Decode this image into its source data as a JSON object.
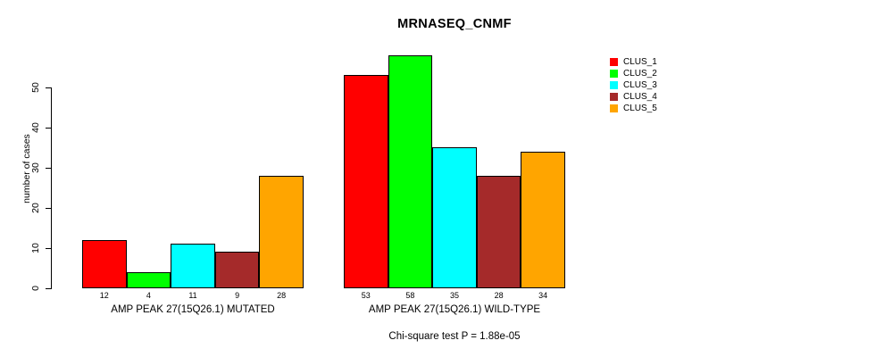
{
  "chart_data": {
    "type": "bar",
    "title": "MRNASEQ_CNMF",
    "ylabel": "number of cases",
    "xlabel": "",
    "annotation": "Chi-square test P = 1.88e-05",
    "categories": [
      "AMP PEAK 27(15Q26.1) MUTATED",
      "AMP PEAK 27(15Q26.1) WILD-TYPE"
    ],
    "series": [
      {
        "name": "CLUS_1",
        "color": "#FF0000",
        "values": [
          12,
          53
        ]
      },
      {
        "name": "CLUS_2",
        "color": "#00FF00",
        "values": [
          4,
          58
        ]
      },
      {
        "name": "CLUS_3",
        "color": "#00FFFF",
        "values": [
          11,
          35
        ]
      },
      {
        "name": "CLUS_4",
        "color": "#A52A2A",
        "values": [
          9,
          28
        ]
      },
      {
        "name": "CLUS_5",
        "color": "#FFA500",
        "values": [
          28,
          34
        ]
      }
    ],
    "yticks": [
      0,
      10,
      20,
      30,
      40,
      50
    ],
    "ylim": [
      0,
      58
    ],
    "grid": false,
    "legend_position": "right-inside",
    "bar_border_color": "#000000",
    "background": "#FFFFFF"
  }
}
